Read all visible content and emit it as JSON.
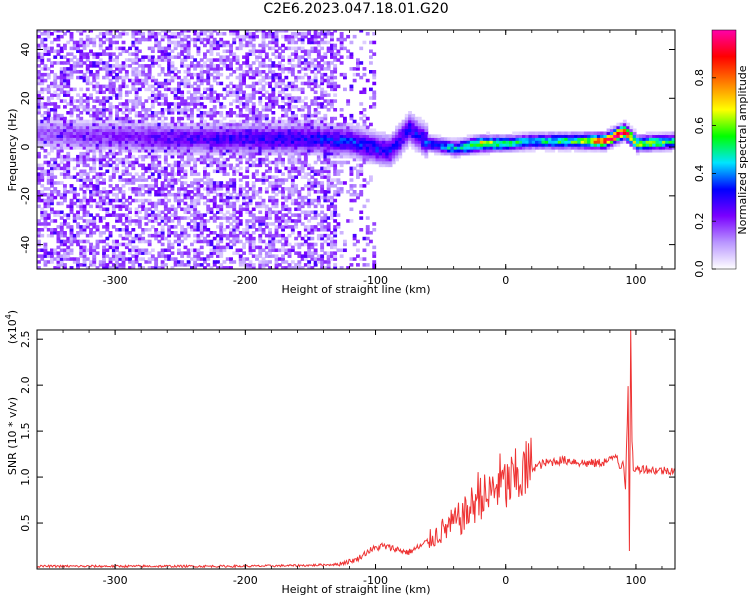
{
  "title": "C2E6.2023.047.18.01.G20",
  "chart_data": [
    {
      "type": "heatmap",
      "xlabel": "Height of straight line (km)",
      "ylabel": "Frequency (Hz)",
      "xlim": [
        -360,
        130
      ],
      "ylim": [
        -50,
        48
      ],
      "x_ticks": [
        -300,
        -200,
        -100,
        0,
        100
      ],
      "y_ticks": [
        -40,
        -20,
        0,
        20,
        40
      ],
      "colorbar": {
        "label": "Normalized spectral amplitude",
        "range": [
          0,
          1
        ],
        "ticks": [
          "0.0",
          "0.2",
          "0.4",
          "0.6",
          "0.8"
        ],
        "colormap": [
          "#ffffff",
          "#b996ff",
          "#7a00ff",
          "#0000ff",
          "#00e5ff",
          "#00ff00",
          "#ffff00",
          "#ff7f00",
          "#ff0000",
          "#ff00aa"
        ]
      },
      "ridge": [
        {
          "x": -360,
          "y": 5,
          "amp": 0.15
        },
        {
          "x": -300,
          "y": 4,
          "amp": 0.2
        },
        {
          "x": -250,
          "y": 3,
          "amp": 0.25
        },
        {
          "x": -200,
          "y": 3,
          "amp": 0.28
        },
        {
          "x": -150,
          "y": 3,
          "amp": 0.3
        },
        {
          "x": -120,
          "y": 2,
          "amp": 0.33
        },
        {
          "x": -100,
          "y": -1,
          "amp": 0.32
        },
        {
          "x": -90,
          "y": -2,
          "amp": 0.3
        },
        {
          "x": -75,
          "y": 7,
          "amp": 0.3
        },
        {
          "x": -60,
          "y": 1,
          "amp": 0.35
        },
        {
          "x": -40,
          "y": -1,
          "amp": 0.45
        },
        {
          "x": -20,
          "y": 1,
          "amp": 0.65
        },
        {
          "x": 0,
          "y": 1,
          "amp": 0.5
        },
        {
          "x": 20,
          "y": 2,
          "amp": 0.45
        },
        {
          "x": 50,
          "y": 2,
          "amp": 0.55
        },
        {
          "x": 75,
          "y": 2,
          "amp": 0.8
        },
        {
          "x": 90,
          "y": 6,
          "amp": 0.9
        },
        {
          "x": 100,
          "y": 1,
          "amp": 0.6
        },
        {
          "x": 130,
          "y": 2,
          "amp": 0.5
        }
      ]
    },
    {
      "type": "line",
      "xlabel": "Height of straight line (km)",
      "ylabel": "SNR (10 * v/v)",
      "y_multiplier": "(x10",
      "y_exponent": "4",
      "y_exponent_close": ")",
      "xlim": [
        -360,
        130
      ],
      "ylim": [
        0,
        2.6
      ],
      "x_ticks": [
        -300,
        -200,
        -100,
        0,
        100
      ],
      "y_ticks": [
        0.5,
        1.0,
        1.5,
        2.0,
        2.5
      ],
      "color": "#ee3333",
      "series": [
        {
          "x": [
            -360,
            -300,
            -250,
            -200,
            -150,
            -130,
            -115,
            -105,
            -95,
            -85,
            -75,
            -65,
            -55,
            -45,
            -40,
            -35,
            -30,
            -25,
            -20,
            -15,
            -10,
            -5,
            0,
            5,
            10,
            15,
            20,
            30,
            40,
            50,
            60,
            70,
            80,
            85,
            88,
            90,
            92,
            94,
            95,
            96,
            97,
            98,
            100,
            105,
            110,
            120,
            130
          ],
          "y": [
            0.03,
            0.03,
            0.03,
            0.03,
            0.04,
            0.05,
            0.1,
            0.2,
            0.25,
            0.22,
            0.18,
            0.25,
            0.35,
            0.45,
            0.5,
            0.55,
            0.6,
            0.7,
            0.85,
            0.75,
            0.85,
            0.95,
            0.9,
            0.95,
            1.0,
            1.05,
            1.1,
            1.15,
            1.18,
            1.18,
            1.15,
            1.15,
            1.18,
            1.25,
            1.1,
            1.2,
            0.9,
            1.95,
            0.2,
            2.6,
            1.4,
            1.1,
            1.08,
            1.1,
            1.08,
            1.07,
            1.08
          ]
        }
      ]
    }
  ]
}
